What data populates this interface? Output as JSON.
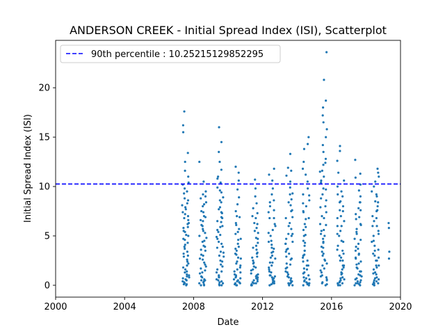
{
  "chart_data": {
    "type": "scatter",
    "title": "ANDERSON CREEK - Initial Spread Index (ISI), Scatterplot",
    "xlabel": "Date",
    "ylabel": "Initial Spread Index (ISI)",
    "xlim": [
      "2000-01-01",
      "2020-01-01"
    ],
    "ylim": [
      -1.2,
      24.8
    ],
    "x_ticks": [
      "2000",
      "2004",
      "2008",
      "2012",
      "2016",
      "2020"
    ],
    "y_ticks": [
      0,
      5,
      10,
      15,
      20
    ],
    "grid": false,
    "legend_position": "top-left",
    "point_color": "#1f77b4",
    "reference_line": {
      "label": "90th percentile : 10.25215129852295",
      "value": 10.25215129852295,
      "x_start": "2000-01-01",
      "x_end": "2019-12-31",
      "color": "#0000ff",
      "style": "dashed"
    },
    "seasons": [
      {
        "start": "2007-05-01",
        "end": "2007-09-30",
        "values": [
          0.1,
          0.3,
          0.5,
          0.8,
          1.1,
          1.4,
          1.8,
          2.2,
          2.6,
          3.0,
          3.4,
          3.9,
          4.3,
          4.7,
          5.1,
          5.5,
          5.8,
          6.2,
          6.6,
          7.0,
          7.4,
          7.9,
          8.3,
          8.8,
          9.3,
          9.8,
          10.4,
          11.0,
          11.6,
          12.5,
          13.4,
          15.5,
          16.2,
          17.6,
          0.2,
          0.6,
          1.0,
          1.6,
          2.4,
          3.2,
          4.1,
          5.0,
          5.9,
          6.8,
          7.7,
          8.6,
          9.5,
          10.2,
          0.0,
          0.4,
          0.9,
          1.3,
          2.0,
          2.9,
          3.7,
          4.6,
          5.4,
          6.3,
          7.2,
          8.1,
          0.1,
          0.7
        ]
      },
      {
        "start": "2008-05-01",
        "end": "2008-09-30",
        "values": [
          0.0,
          0.2,
          0.5,
          0.9,
          1.3,
          1.7,
          2.1,
          2.6,
          3.0,
          3.5,
          4.0,
          4.5,
          5.0,
          5.5,
          6.0,
          6.5,
          7.0,
          7.5,
          8.0,
          8.4,
          8.8,
          9.2,
          9.5,
          10.5,
          12.5,
          0.1,
          0.4,
          0.8,
          1.5,
          2.3,
          3.1,
          3.9,
          4.8,
          5.7,
          6.6,
          7.4,
          8.2,
          9.0,
          0.3,
          0.6,
          1.2,
          1.9,
          2.7,
          3.6,
          4.4,
          5.3,
          6.1,
          6.9,
          0.0,
          0.5
        ]
      },
      {
        "start": "2009-05-01",
        "end": "2009-09-30",
        "values": [
          0.0,
          0.3,
          0.6,
          1.0,
          1.4,
          1.9,
          2.4,
          2.9,
          3.4,
          3.9,
          4.4,
          4.9,
          5.4,
          5.9,
          6.4,
          6.9,
          7.4,
          7.9,
          8.4,
          8.9,
          9.4,
          9.9,
          10.4,
          11.0,
          11.7,
          12.5,
          13.5,
          14.5,
          16.0,
          0.1,
          0.5,
          0.9,
          1.6,
          2.5,
          3.3,
          4.2,
          5.1,
          6.0,
          6.8,
          7.7,
          8.6,
          9.6,
          10.8,
          0.2,
          0.8,
          1.3,
          2.1,
          3.0,
          3.8,
          4.7,
          5.6,
          6.5,
          7.3,
          0.0,
          0.4
        ]
      },
      {
        "start": "2010-05-01",
        "end": "2010-09-30",
        "values": [
          0.0,
          0.2,
          0.4,
          0.7,
          1.0,
          1.4,
          1.8,
          2.2,
          2.7,
          3.2,
          3.7,
          4.2,
          4.7,
          5.2,
          5.7,
          6.3,
          6.9,
          7.5,
          8.2,
          8.9,
          9.7,
          10.6,
          11.4,
          12.0,
          0.1,
          0.3,
          0.6,
          1.1,
          1.6,
          2.4,
          3.1,
          3.9,
          4.6,
          5.4,
          6.1,
          7.0,
          0.0,
          0.5,
          0.9,
          1.3,
          2.0,
          2.8,
          3.5,
          0.2,
          0.8
        ]
      },
      {
        "start": "2011-05-01",
        "end": "2011-09-30",
        "values": [
          0.0,
          0.2,
          0.5,
          0.8,
          1.1,
          1.5,
          1.9,
          2.3,
          2.8,
          3.3,
          3.8,
          4.3,
          4.8,
          5.3,
          5.8,
          6.3,
          6.8,
          7.3,
          7.8,
          8.3,
          9.0,
          9.8,
          10.7,
          0.1,
          0.4,
          0.7,
          1.2,
          1.8,
          2.5,
          3.2,
          4.0,
          4.7,
          5.5,
          6.2,
          7.0,
          0.0,
          0.3,
          0.6,
          1.0,
          1.6,
          2.2,
          2.9,
          3.6,
          0.2,
          0.9
        ]
      },
      {
        "start": "2012-05-01",
        "end": "2012-09-30",
        "values": [
          0.0,
          0.2,
          0.4,
          0.7,
          1.0,
          1.4,
          1.8,
          2.3,
          2.8,
          3.3,
          3.8,
          4.4,
          5.0,
          5.6,
          6.2,
          6.8,
          7.4,
          8.0,
          8.6,
          9.2,
          9.8,
          10.6,
          11.2,
          11.8,
          0.1,
          0.3,
          0.6,
          1.0,
          1.6,
          2.3,
          3.0,
          3.7,
          4.5,
          5.3,
          6.0,
          6.8,
          7.6,
          8.4,
          0.0,
          0.5,
          0.9,
          1.3,
          2.0,
          2.7,
          3.4,
          4.1,
          0.2,
          0.8
        ]
      },
      {
        "start": "2013-05-01",
        "end": "2013-09-30",
        "values": [
          0.0,
          0.2,
          0.5,
          0.9,
          1.3,
          1.7,
          2.2,
          2.7,
          3.2,
          3.7,
          4.2,
          4.7,
          5.2,
          5.7,
          6.3,
          6.9,
          7.5,
          8.1,
          8.7,
          9.3,
          9.9,
          10.5,
          11.1,
          11.6,
          11.9,
          13.3,
          0.1,
          0.4,
          0.8,
          1.4,
          2.1,
          2.9,
          3.6,
          4.4,
          5.2,
          6.0,
          6.8,
          7.6,
          8.4,
          9.2,
          0.0,
          0.3,
          0.7,
          1.1,
          1.8,
          2.6,
          3.4,
          4.2,
          5.0,
          0.2
        ]
      },
      {
        "start": "2014-05-01",
        "end": "2014-09-30",
        "values": [
          0.0,
          0.2,
          0.5,
          0.8,
          1.2,
          1.6,
          2.0,
          2.5,
          3.0,
          3.5,
          4.0,
          4.5,
          5.0,
          5.6,
          6.2,
          6.8,
          7.4,
          8.0,
          8.6,
          9.2,
          9.8,
          10.5,
          11.2,
          11.8,
          12.5,
          13.8,
          14.3,
          15.0,
          0.1,
          0.4,
          0.7,
          1.3,
          2.0,
          2.8,
          3.5,
          4.3,
          5.1,
          5.9,
          6.7,
          7.5,
          8.3,
          9.1,
          0.0,
          0.3,
          0.6,
          1.0,
          1.7,
          2.4,
          3.1,
          0.2
        ]
      },
      {
        "start": "2015-05-01",
        "end": "2015-09-30",
        "values": [
          0.0,
          0.3,
          0.6,
          1.0,
          1.5,
          2.0,
          2.6,
          3.2,
          3.8,
          4.4,
          5.0,
          5.6,
          6.2,
          6.8,
          7.4,
          8.0,
          8.6,
          9.2,
          9.8,
          10.4,
          11.0,
          11.6,
          12.2,
          12.8,
          13.5,
          14.2,
          15.0,
          15.8,
          16.5,
          17.2,
          18.0,
          18.7,
          20.8,
          23.6,
          0.1,
          0.5,
          0.9,
          1.7,
          2.5,
          3.4,
          4.3,
          5.2,
          6.1,
          7.0,
          7.9,
          8.8,
          9.7,
          10.6,
          11.5,
          12.4,
          0.2,
          0.8,
          1.3,
          2.2,
          3.0,
          3.9,
          4.7,
          5.5
        ]
      },
      {
        "start": "2016-05-01",
        "end": "2016-09-30",
        "values": [
          0.0,
          0.2,
          0.5,
          0.8,
          1.2,
          1.6,
          2.0,
          2.5,
          3.0,
          3.5,
          4.0,
          4.5,
          5.0,
          5.5,
          6.0,
          6.5,
          7.0,
          7.5,
          8.0,
          8.5,
          9.0,
          9.5,
          10.0,
          10.6,
          11.4,
          12.6,
          13.6,
          14.1,
          0.1,
          0.4,
          0.7,
          1.3,
          2.0,
          2.8,
          3.6,
          4.4,
          5.2,
          6.0,
          6.8,
          7.6,
          8.4,
          9.2,
          0.0,
          0.3,
          0.6,
          1.1,
          1.8,
          2.5,
          3.2,
          0.2
        ]
      },
      {
        "start": "2017-05-01",
        "end": "2017-09-30",
        "values": [
          0.0,
          0.2,
          0.4,
          0.7,
          1.0,
          1.4,
          1.8,
          2.2,
          2.7,
          3.2,
          3.7,
          4.2,
          4.7,
          5.2,
          5.7,
          6.2,
          6.7,
          7.2,
          7.8,
          8.4,
          9.0,
          9.6,
          10.2,
          10.9,
          11.3,
          12.7,
          0.1,
          0.3,
          0.6,
          1.1,
          1.7,
          2.4,
          3.1,
          3.9,
          4.6,
          5.4,
          6.1,
          6.9,
          7.6,
          8.4,
          0.0,
          0.5,
          0.9,
          1.4,
          2.1,
          2.8,
          3.5,
          0.2
        ]
      },
      {
        "start": "2018-05-01",
        "end": "2018-09-30",
        "values": [
          0.0,
          0.2,
          0.5,
          0.8,
          1.2,
          1.6,
          2.0,
          2.5,
          3.0,
          3.5,
          4.0,
          4.5,
          5.0,
          5.5,
          6.0,
          6.5,
          7.0,
          7.5,
          8.0,
          8.5,
          9.0,
          9.5,
          10.0,
          10.5,
          11.0,
          11.4,
          11.8,
          0.1,
          0.4,
          0.7,
          1.3,
          2.0,
          2.8,
          3.6,
          4.4,
          5.2,
          6.0,
          6.8,
          7.6,
          8.4,
          9.2,
          0.0,
          0.3,
          0.6,
          1.1,
          1.8,
          2.5,
          3.2,
          0.2
        ]
      },
      {
        "start": "2019-04-15",
        "end": "2019-05-10",
        "values": [
          2.7,
          3.4,
          5.8,
          6.3
        ]
      }
    ]
  }
}
